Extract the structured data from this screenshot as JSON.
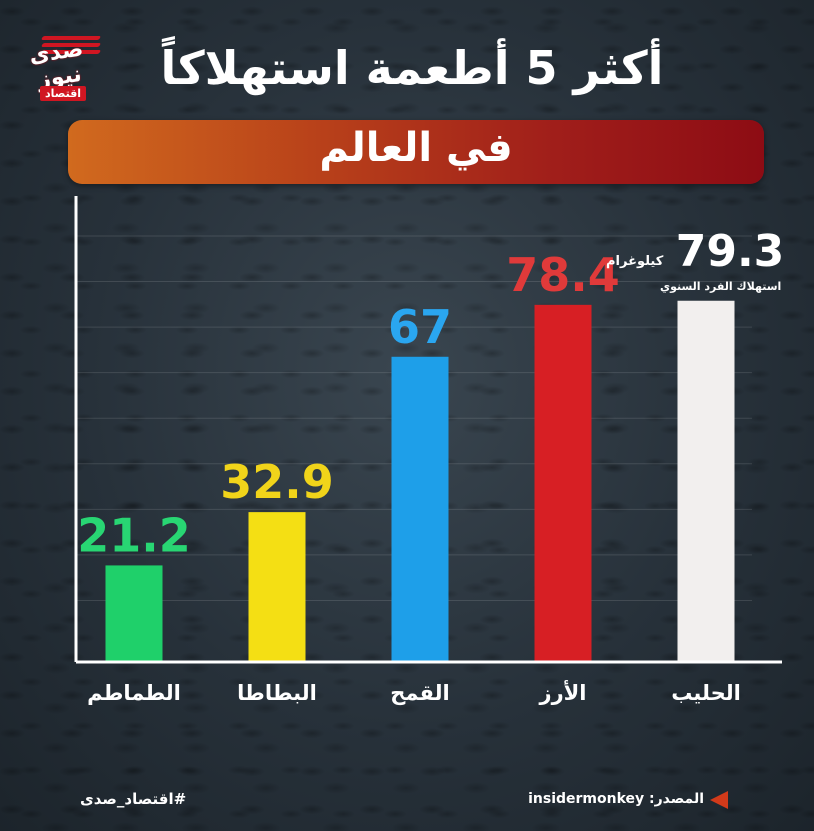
{
  "logo": {
    "brand": "صدى نيوز",
    "tag": "اقتصاد"
  },
  "header": {
    "title": "أكثر 5 أطعمة استهلاكاً",
    "subtitle": "في العالم"
  },
  "chart_data": {
    "type": "bar",
    "title": "أكثر 5 أطعمة استهلاكاً في العالم",
    "unit": "كيلوغرام",
    "measure": "استهلاك الفرد السنوي",
    "categories": [
      "الحليب",
      "الأرز",
      "القمح",
      "البطاطا",
      "الطماطم"
    ],
    "values": [
      79.3,
      78.4,
      67,
      32.9,
      21.2
    ],
    "value_labels": [
      "79.3",
      "78.4",
      "67",
      "32.9",
      "21.2"
    ],
    "colors": [
      "#f2efee",
      "#d71f24",
      "#1e9fe9",
      "#f4df14",
      "#1fd06a"
    ],
    "label_colors": [
      "#ffffff",
      "#e03a3a",
      "#2aa6f0",
      "#f1d41a",
      "#28d673"
    ],
    "ylim": [
      0,
      90
    ],
    "grid": true,
    "orientation": "rtl"
  },
  "footer": {
    "hashtag": "#اقتصاد_صدى",
    "source": "المصدر: insidermonkey"
  }
}
